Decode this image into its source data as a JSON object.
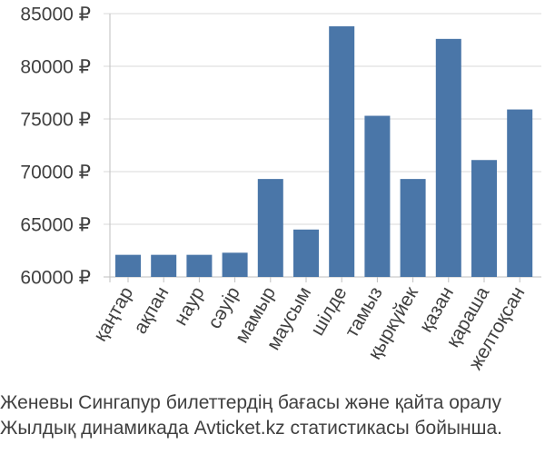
{
  "chart_data": {
    "type": "bar",
    "title": "",
    "xlabel": "",
    "ylabel": "",
    "categories": [
      "қаңтар",
      "ақпан",
      "наур",
      "сәуір",
      "мамыр",
      "маусым",
      "шілде",
      "тамыз",
      "қыркүйек",
      "қазан",
      "қараша",
      "желтоқсан"
    ],
    "values": [
      62100,
      62100,
      62100,
      62300,
      69300,
      64500,
      83800,
      75300,
      69300,
      82600,
      71100,
      75900
    ],
    "ylim": [
      60000,
      85000
    ],
    "yticks": [
      60000,
      65000,
      70000,
      75000,
      80000,
      85000
    ],
    "ytick_labels": [
      "60000 ₽",
      "65000 ₽",
      "70000 ₽",
      "75000 ₽",
      "80000 ₽",
      "85000 ₽"
    ],
    "bar_color": "#4a76a8",
    "grid": "horizontal",
    "legend": "none"
  },
  "caption": {
    "line1": "Женевы Сингапур билеттердің бағасы және қайта оралу",
    "line2": "Жылдық динамикада Avticket.kz статистикасы бойынша."
  }
}
